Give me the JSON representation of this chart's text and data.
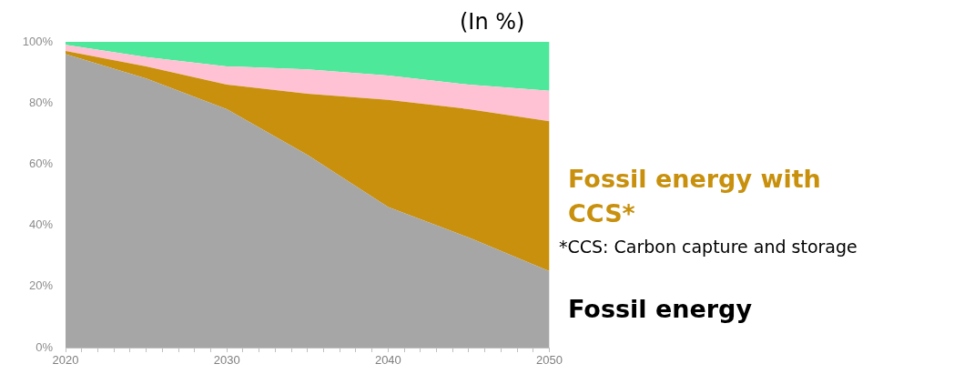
{
  "chart_data": {
    "type": "area",
    "stacked": true,
    "marker": "none",
    "legend": false,
    "x": [
      2020,
      2025,
      2030,
      2035,
      2040,
      2045,
      2050
    ],
    "xlim": [
      2020,
      2050
    ],
    "xticks": [
      2020,
      {
        "value": 2021,
        "label": null
      },
      {
        "value": 2022,
        "label": null
      },
      {
        "value": 2023,
        "label": null
      },
      {
        "value": 2024,
        "label": null
      },
      {
        "value": 2025,
        "label": null
      },
      {
        "value": 2026,
        "label": null
      },
      {
        "value": 2027,
        "label": null
      },
      {
        "value": 2028,
        "label": null
      },
      {
        "value": 2029,
        "label": null
      },
      2030,
      {
        "value": 2031,
        "label": null
      },
      {
        "value": 2032,
        "label": null
      },
      {
        "value": 2033,
        "label": null
      },
      {
        "value": 2034,
        "label": null
      },
      {
        "value": 2035,
        "label": null
      },
      {
        "value": 2036,
        "label": null
      },
      {
        "value": 2037,
        "label": null
      },
      {
        "value": 2038,
        "label": null
      },
      {
        "value": 2039,
        "label": null
      },
      2040,
      {
        "value": 2041,
        "label": null
      },
      {
        "value": 2042,
        "label": null
      },
      {
        "value": 2043,
        "label": null
      },
      {
        "value": 2044,
        "label": null
      },
      {
        "value": 2045,
        "label": null
      },
      {
        "value": 2046,
        "label": null
      },
      {
        "value": 2047,
        "label": null
      },
      {
        "value": 2048,
        "label": null
      },
      {
        "value": 2049,
        "label": null
      },
      2050
    ],
    "ylim": [
      0,
      100
    ],
    "yticks": [
      {
        "value": 0,
        "label": "0%"
      },
      {
        "value": 20,
        "label": "20%"
      },
      {
        "value": 40,
        "label": "40%"
      },
      {
        "value": 60,
        "label": "60%"
      },
      {
        "value": 80,
        "label": "80%"
      },
      {
        "value": 100,
        "label": "100%"
      }
    ],
    "series": [
      {
        "name": "Fossil energy",
        "color": "#a6a6a6",
        "values": [
          96,
          88,
          78,
          63,
          46,
          36,
          25
        ]
      },
      {
        "name": "Fossil energy with CCS*",
        "color": "#c8900c",
        "values": [
          1,
          4,
          8,
          20,
          35,
          42,
          49
        ]
      },
      {
        "color": "#ffc2d4",
        "values": [
          2,
          3,
          6,
          8,
          8,
          8,
          10
        ]
      },
      {
        "color": "#4de89a",
        "values": [
          1,
          5,
          8,
          9,
          11,
          14,
          16
        ]
      }
    ],
    "annotations": [
      "(In %)",
      "*CCS: Carbon capture and storage"
    ]
  }
}
